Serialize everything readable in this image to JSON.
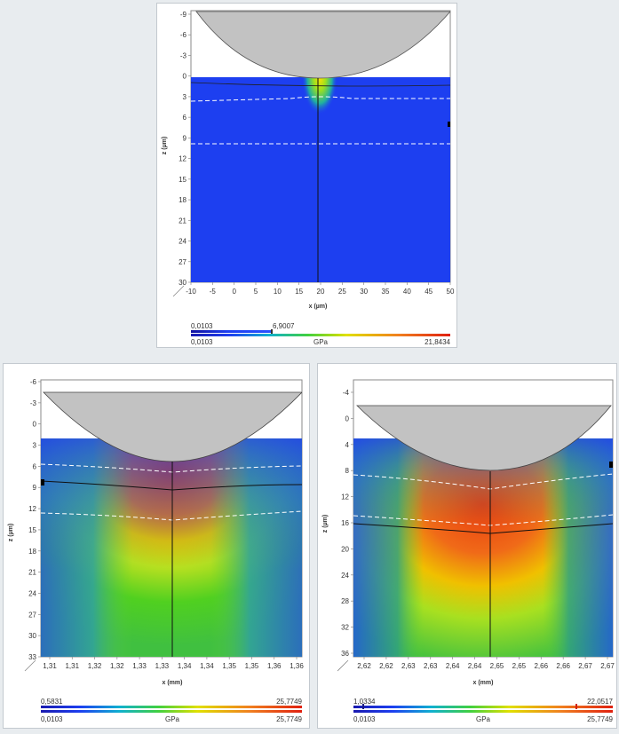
{
  "panels": [
    {
      "id": "top",
      "ylabel": "z (µm)",
      "xlabel": "x (µm)",
      "y_ticks": [
        "-9",
        "-6",
        "-3",
        "0",
        "3",
        "6",
        "9",
        "12",
        "15",
        "18",
        "21",
        "24",
        "27",
        "30"
      ],
      "x_ticks": [
        "-10",
        "-5",
        "0",
        "5",
        "10",
        "15",
        "20",
        "25",
        "30",
        "35",
        "40",
        "45",
        "50"
      ],
      "colorbar": {
        "top_left": "0,0103",
        "top_mid": "6,9007",
        "top_right": "",
        "bottom_left": "0,0103",
        "unit": "GPa",
        "bottom_right": "21,8434"
      }
    },
    {
      "id": "bottom-left",
      "ylabel": "z (µm)",
      "xlabel": "x (mm)",
      "y_ticks": [
        "-6",
        "-3",
        "0",
        "3",
        "6",
        "9",
        "12",
        "15",
        "18",
        "21",
        "24",
        "27",
        "30",
        "33"
      ],
      "x_ticks": [
        "1,31",
        "1,31",
        "1,32",
        "1,32",
        "1,33",
        "1,33",
        "1,34",
        "1,34",
        "1,35",
        "1,35",
        "1,36",
        "1,36"
      ],
      "colorbar": {
        "top_left": "0,5831",
        "top_mid": "",
        "top_right": "25,7749",
        "bottom_left": "0,0103",
        "unit": "GPa",
        "bottom_right": "25,7749"
      }
    },
    {
      "id": "bottom-right",
      "ylabel": "z (µm)",
      "xlabel": "x (mm)",
      "y_ticks": [
        "-4",
        "0",
        "4",
        "8",
        "12",
        "16",
        "20",
        "24",
        "28",
        "32",
        "36"
      ],
      "x_ticks": [
        "2,62",
        "2,62",
        "2,63",
        "2,63",
        "2,64",
        "2,64",
        "2,65",
        "2,65",
        "2,66",
        "2,66",
        "2,67",
        "2,67"
      ],
      "colorbar": {
        "top_left": "1,0334",
        "top_mid": "",
        "top_right": "22,0517",
        "bottom_left": "0,0103",
        "unit": "GPa",
        "bottom_right": "25,7749"
      }
    }
  ],
  "colors": {
    "background": "#e8ecef",
    "substrate_low": "#1d3ff0",
    "indenter": "#c2c2c2",
    "hot": "#e82010",
    "warm": "#f0c000",
    "mid": "#50d020"
  },
  "chart_data": [
    {
      "type": "heatmap",
      "title": "",
      "xlabel": "x (µm)",
      "ylabel": "z (µm)",
      "xlim": [
        -10,
        50
      ],
      "ylim": [
        30,
        -9
      ],
      "x_ticks": [
        -10,
        -5,
        0,
        5,
        10,
        15,
        20,
        25,
        30,
        35,
        40,
        45,
        50
      ],
      "y_ticks": [
        -9,
        -6,
        -3,
        0,
        3,
        6,
        9,
        12,
        15,
        18,
        21,
        24,
        27,
        30
      ],
      "colorbar": {
        "unit": "GPa",
        "min": 0.0103,
        "max": 21.8434,
        "marker": 6.9007,
        "range_shown": [
          0.0103,
          6.9007
        ]
      },
      "indenter": {
        "center_x": 20,
        "contact_z": 0.5
      },
      "hotspot": {
        "x": 20,
        "z": 2,
        "value_approx": 6.9
      },
      "dashed_lines_z": [
        3.5,
        10.5
      ],
      "vertical_line_x": 19.5
    },
    {
      "type": "heatmap",
      "title": "",
      "xlabel": "x (mm)",
      "ylabel": "z (µm)",
      "ylim": [
        33,
        -7
      ],
      "y_ticks": [
        -6,
        -3,
        0,
        3,
        6,
        9,
        12,
        15,
        18,
        21,
        24,
        27,
        30,
        33
      ],
      "colorbar": {
        "unit": "GPa",
        "min": 0.0103,
        "max": 25.7749,
        "range_shown": [
          0.5831,
          25.7749
        ]
      },
      "indenter": {
        "contact_z": 5.5
      },
      "dashed_lines_z": [
        7.5,
        13.5
      ],
      "solid_line_z": 9.5
    },
    {
      "type": "heatmap",
      "title": "",
      "xlabel": "x (mm)",
      "ylabel": "z (µm)",
      "ylim": [
        36,
        -6
      ],
      "y_ticks": [
        -4,
        0,
        4,
        8,
        12,
        16,
        20,
        24,
        28,
        32,
        36
      ],
      "colorbar": {
        "unit": "GPa",
        "min": 0.0103,
        "max": 25.7749,
        "range_shown": [
          1.0334,
          22.0517
        ]
      },
      "indenter": {
        "contact_z": 8
      },
      "dashed_lines_z": [
        10.5,
        16
      ],
      "solid_line_z": 17.5
    }
  ]
}
